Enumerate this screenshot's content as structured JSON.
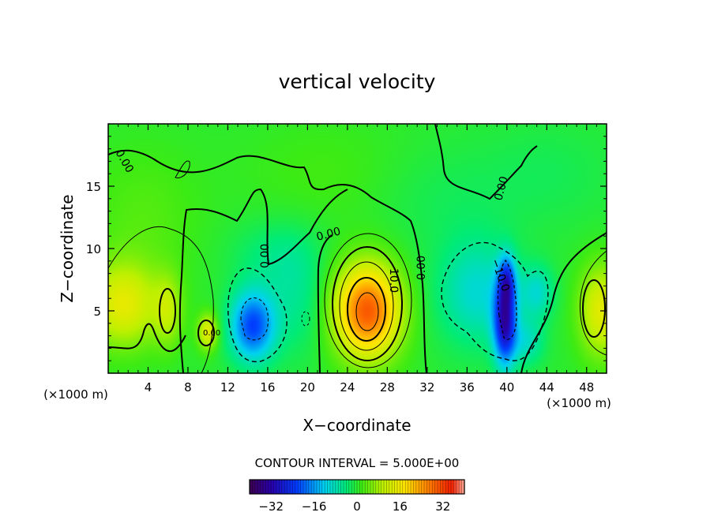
{
  "chart_data": {
    "type": "heatmap",
    "title": "vertical velocity",
    "xlabel": "X−coordinate",
    "ylabel": "Z−coordinate",
    "x_unit_left": "(×1000 m)",
    "x_unit_right": "(×1000 m)",
    "xlim": [
      0,
      50
    ],
    "ylim": [
      0,
      20
    ],
    "x_ticks": [
      4,
      8,
      12,
      16,
      20,
      24,
      28,
      32,
      36,
      40,
      44,
      48
    ],
    "y_ticks": [
      5,
      10,
      15
    ],
    "contour_interval_label": "CONTOUR INTERVAL = 5.000E+00",
    "contour_labels": [
      "0.00",
      "0.00",
      "0.00",
      "0.00",
      "10.0",
      "0.00",
      "−10.0",
      "0.00"
    ],
    "colorbar": {
      "min": -40,
      "max": 40,
      "ticks": [
        -32,
        -16,
        0,
        16,
        32
      ]
    },
    "blobs": [
      {
        "x": 26.0,
        "z": 5.0,
        "sx": 2.3,
        "sz": 2.6,
        "amp": 30
      },
      {
        "x": 14.5,
        "z": 3.8,
        "sx": 1.6,
        "sz": 2.0,
        "amp": -22
      },
      {
        "x": 39.8,
        "z": 4.0,
        "sx": 0.8,
        "sz": 2.4,
        "amp": -28
      },
      {
        "x": 40.0,
        "z": 7.5,
        "sx": 0.6,
        "sz": 1.4,
        "amp": -16
      },
      {
        "x": 37.0,
        "z": 6.5,
        "sx": 2.8,
        "sz": 3.0,
        "amp": -10
      },
      {
        "x": 1.5,
        "z": 5.5,
        "sx": 2.6,
        "sz": 2.4,
        "amp": 14
      },
      {
        "x": 6.0,
        "z": 5.0,
        "sx": 1.0,
        "sz": 2.0,
        "amp": 8
      },
      {
        "x": 10.0,
        "z": 3.3,
        "sx": 0.7,
        "sz": 1.0,
        "amp": 14
      },
      {
        "x": 49.5,
        "z": 5.0,
        "sx": 1.6,
        "sz": 2.6,
        "amp": 14
      },
      {
        "x": 19.0,
        "z": 6.0,
        "sx": 2.0,
        "sz": 3.2,
        "amp": -5
      },
      {
        "x": 43.0,
        "z": 6.5,
        "sx": 1.2,
        "sz": 1.5,
        "amp": -9
      },
      {
        "x": 42.0,
        "z": 2.5,
        "sx": 1.2,
        "sz": 1.3,
        "amp": -8
      },
      {
        "x": 16.5,
        "z": 9.5,
        "sx": 3.0,
        "sz": 2.0,
        "amp": -4
      },
      {
        "x": 3.5,
        "z": 12.5,
        "sx": 4.0,
        "sz": 4.0,
        "amp": 3
      },
      {
        "x": 22.0,
        "z": 16.0,
        "sx": 6.0,
        "sz": 3.0,
        "amp": 2
      },
      {
        "x": 33.0,
        "z": 14.0,
        "sx": 5.0,
        "sz": 3.0,
        "amp": -2
      },
      {
        "x": 44.0,
        "z": 16.0,
        "sx": 5.0,
        "sz": 3.0,
        "amp": -2
      }
    ]
  }
}
